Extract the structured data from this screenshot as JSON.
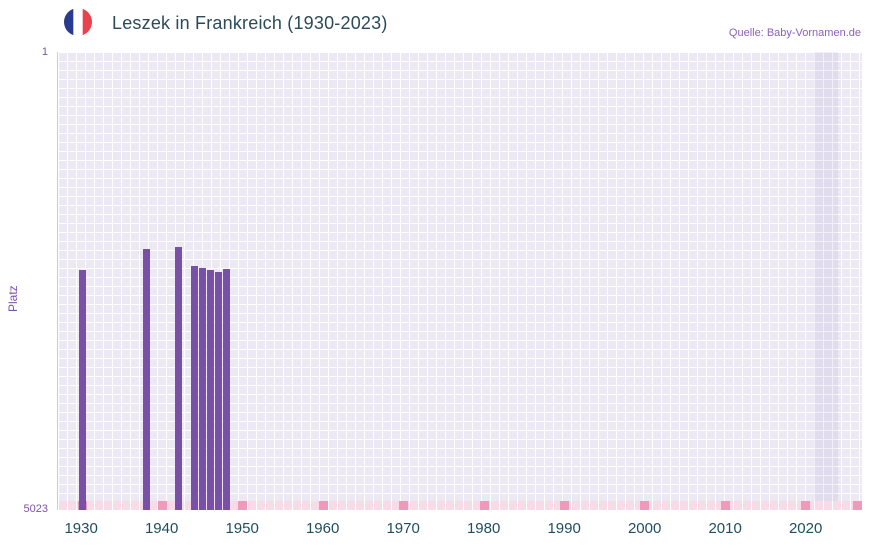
{
  "header": {
    "flag_icon": "france-flag-icon",
    "title": "Leszek in Frankreich (1930-2023)",
    "source": "Quelle: Baby-Vornamen.de"
  },
  "chart_data": {
    "type": "bar",
    "title": "Leszek in Frankreich (1930-2023)",
    "xlabel": "",
    "ylabel": "Platz",
    "y_axis": {
      "min": 1,
      "max": 5023,
      "inverted": true,
      "top_tick": "1",
      "bottom_tick": "5023"
    },
    "x_range": [
      1927,
      2027
    ],
    "x_ticks": [
      1930,
      1940,
      1950,
      1960,
      1970,
      1980,
      1990,
      2000,
      2010,
      2020
    ],
    "bars": [
      {
        "year": 1930,
        "rank": 2390
      },
      {
        "year": 1938,
        "rank": 2160
      },
      {
        "year": 1942,
        "rank": 2140
      },
      {
        "year": 1944,
        "rank": 2350
      },
      {
        "year": 1945,
        "rank": 2370
      },
      {
        "year": 1946,
        "rank": 2390
      },
      {
        "year": 1947,
        "rank": 2410
      },
      {
        "year": 1948,
        "rank": 2380
      }
    ],
    "highlight_band": {
      "from": 2021,
      "to": 2024
    },
    "grid": true,
    "legend": false,
    "colors": {
      "bar": "#7850a8",
      "plot_bg": "#ece9f5",
      "grid_line": "#ffffff",
      "axis_text": "#7b52ab",
      "year_text": "#1f4e5f",
      "title_text": "#2c4a5a",
      "source_text": "#8a62b5",
      "bottom_strip": "#f7dbe7",
      "decade_marker": "#ec9cba",
      "flag_blue": "#283b8e",
      "flag_red": "#e8424f"
    }
  }
}
